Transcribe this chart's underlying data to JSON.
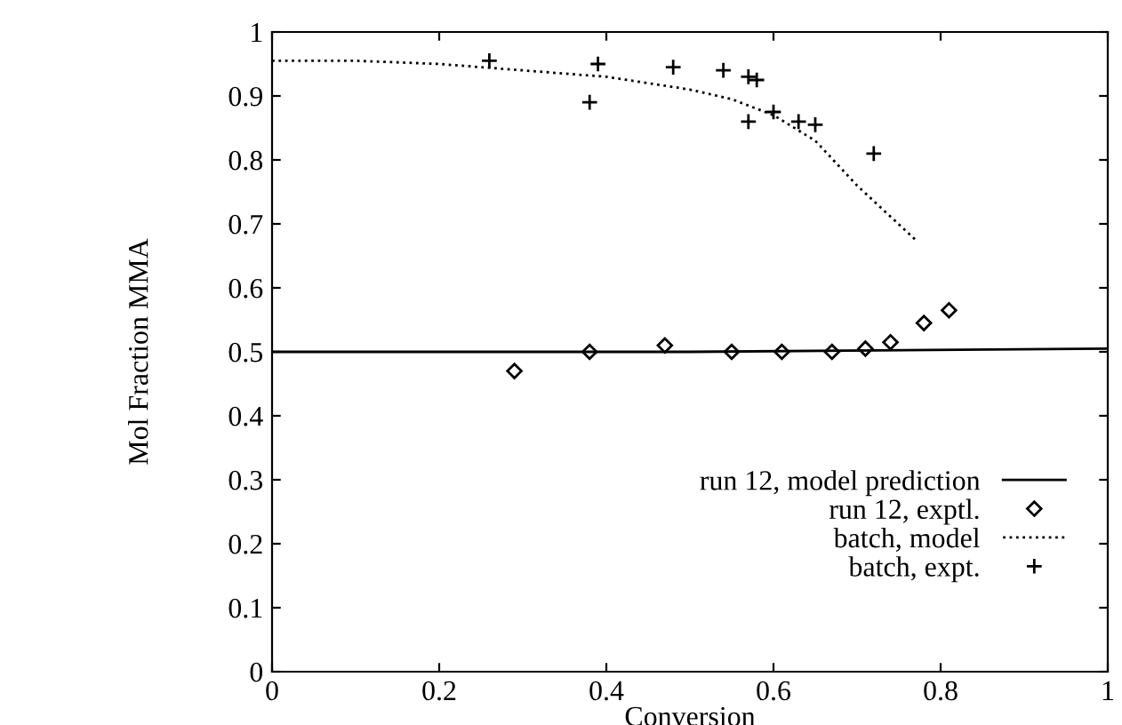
{
  "chart_data": {
    "type": "line",
    "xlabel": "Conversion",
    "ylabel": "Mol Fraction MMA",
    "xlim": [
      0,
      1
    ],
    "ylim": [
      0,
      1
    ],
    "xticks": [
      0,
      0.2,
      0.4,
      0.6,
      0.8,
      1
    ],
    "yticks": [
      0,
      0.1,
      0.2,
      0.3,
      0.4,
      0.5,
      0.6,
      0.7,
      0.8,
      0.9,
      1
    ],
    "grid": false,
    "legend": "lower right",
    "series": [
      {
        "name": "run 12, model prediction",
        "color": "#000000",
        "line_style": "solid",
        "marker": "none",
        "x": [
          0,
          0.5,
          1
        ],
        "values": [
          0.5,
          0.5,
          0.505
        ]
      },
      {
        "name": "run 12, exptl.",
        "type": "scatter",
        "color": "#000000",
        "marker": "diamond",
        "x": [
          0.29,
          0.38,
          0.47,
          0.55,
          0.61,
          0.67,
          0.71,
          0.74,
          0.78,
          0.81
        ],
        "values": [
          0.47,
          0.5,
          0.51,
          0.5,
          0.5,
          0.5,
          0.505,
          0.515,
          0.545,
          0.565
        ]
      },
      {
        "name": "batch, model",
        "color": "#000000",
        "line_style": "dotted",
        "marker": "none",
        "x": [
          0,
          0.1,
          0.2,
          0.3,
          0.4,
          0.5,
          0.55,
          0.6,
          0.65,
          0.7,
          0.77
        ],
        "values": [
          0.955,
          0.955,
          0.95,
          0.94,
          0.93,
          0.91,
          0.895,
          0.87,
          0.83,
          0.76,
          0.675
        ]
      },
      {
        "name": "batch, expt.",
        "type": "scatter",
        "color": "#000000",
        "marker": "cross",
        "x": [
          0.26,
          0.38,
          0.39,
          0.48,
          0.54,
          0.57,
          0.58,
          0.57,
          0.6,
          0.63,
          0.65,
          0.72
        ],
        "values": [
          0.955,
          0.89,
          0.95,
          0.945,
          0.94,
          0.93,
          0.925,
          0.86,
          0.875,
          0.86,
          0.855,
          0.81
        ]
      }
    ]
  }
}
